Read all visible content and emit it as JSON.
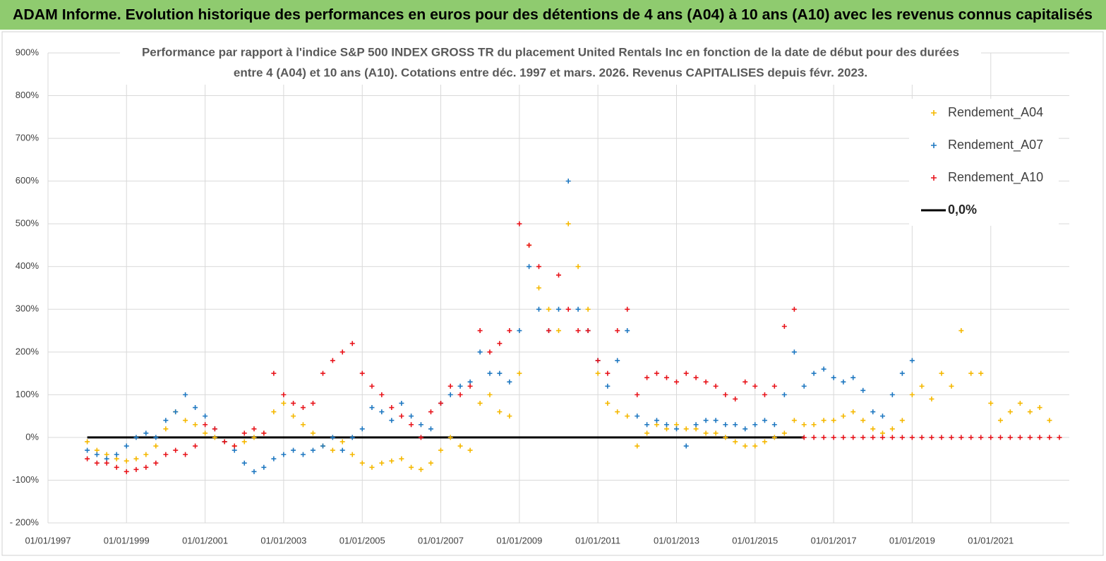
{
  "header": {
    "title": "ADAM Informe. Evolution historique des performances en euros pour des détentions de 4 ans (A04) à 10 ans (A10) avec les revenus connus capitalisés"
  },
  "chart_data": {
    "type": "scatter",
    "title_lines": [
      "Performance par rapport à l'indice S&P 500 INDEX GROSS TR  du placement United Rentals Inc en fonction de la date de début pour des durées",
      "entre 4 (A04) et 10 ans (A10). Cotations entre déc. 1997 et mars. 2026. Revenus CAPITALISES depuis févr. 2023."
    ],
    "xlim": [
      "1997-01-01",
      "2023-01-01"
    ],
    "xticks": [
      {
        "value": "1997-01-01",
        "label": "01/01/1997"
      },
      {
        "value": "1999-01-01",
        "label": "01/01/1999"
      },
      {
        "value": "2001-01-01",
        "label": "01/01/2001"
      },
      {
        "value": "2003-01-01",
        "label": "01/01/2003"
      },
      {
        "value": "2005-01-01",
        "label": "01/01/2005"
      },
      {
        "value": "2007-01-01",
        "label": "01/01/2007"
      },
      {
        "value": "2009-01-01",
        "label": "01/01/2009"
      },
      {
        "value": "2011-01-01",
        "label": "01/01/2011"
      },
      {
        "value": "2013-01-01",
        "label": "01/01/2013"
      },
      {
        "value": "2015-01-01",
        "label": "01/01/2015"
      },
      {
        "value": "2017-01-01",
        "label": "01/01/2017"
      },
      {
        "value": "2019-01-01",
        "label": "01/01/2019"
      },
      {
        "value": "2021-01-01",
        "label": "01/01/2021"
      }
    ],
    "ylim": [
      -200,
      900
    ],
    "yticks": [
      {
        "value": -200,
        "label": "- 200%"
      },
      {
        "value": -100,
        "label": "-100%"
      },
      {
        "value": 0,
        "label": "0%"
      },
      {
        "value": 100,
        "label": "100%"
      },
      {
        "value": 200,
        "label": "200%"
      },
      {
        "value": 300,
        "label": "300%"
      },
      {
        "value": 400,
        "label": "400%"
      },
      {
        "value": 500,
        "label": "500%"
      },
      {
        "value": 600,
        "label": "600%"
      },
      {
        "value": 700,
        "label": "700%"
      },
      {
        "value": 800,
        "label": "800%"
      },
      {
        "value": 900,
        "label": "900%"
      }
    ],
    "grid": true,
    "legend": "upper right",
    "x": [
      "1998-01-01",
      "1998-04-01",
      "1998-07-01",
      "1998-10-01",
      "1999-01-01",
      "1999-04-01",
      "1999-07-01",
      "1999-10-01",
      "2000-01-01",
      "2000-04-01",
      "2000-07-01",
      "2000-10-01",
      "2001-01-01",
      "2001-04-01",
      "2001-07-01",
      "2001-10-01",
      "2002-01-01",
      "2002-04-01",
      "2002-07-01",
      "2002-10-01",
      "2003-01-01",
      "2003-04-01",
      "2003-07-01",
      "2003-10-01",
      "2004-01-01",
      "2004-04-01",
      "2004-07-01",
      "2004-10-01",
      "2005-01-01",
      "2005-04-01",
      "2005-07-01",
      "2005-10-01",
      "2006-01-01",
      "2006-04-01",
      "2006-07-01",
      "2006-10-01",
      "2007-01-01",
      "2007-04-01",
      "2007-07-01",
      "2007-10-01",
      "2008-01-01",
      "2008-04-01",
      "2008-07-01",
      "2008-10-01",
      "2009-01-01",
      "2009-04-01",
      "2009-07-01",
      "2009-10-01",
      "2010-01-01",
      "2010-04-01",
      "2010-07-01",
      "2010-10-01",
      "2011-01-01",
      "2011-04-01",
      "2011-07-01",
      "2011-10-01",
      "2012-01-01",
      "2012-04-01",
      "2012-07-01",
      "2012-10-01",
      "2013-01-01",
      "2013-04-01",
      "2013-07-01",
      "2013-10-01",
      "2014-01-01",
      "2014-04-01",
      "2014-07-01",
      "2014-10-01",
      "2015-01-01",
      "2015-04-01",
      "2015-07-01",
      "2015-10-01",
      "2016-01-01",
      "2016-04-01",
      "2016-07-01",
      "2016-10-01",
      "2017-01-01",
      "2017-04-01",
      "2017-07-01",
      "2017-10-01",
      "2018-01-01",
      "2018-04-01",
      "2018-07-01",
      "2018-10-01",
      "2019-01-01",
      "2019-04-01",
      "2019-07-01",
      "2019-10-01",
      "2020-01-01",
      "2020-04-01",
      "2020-07-01",
      "2020-10-01",
      "2021-01-01",
      "2021-04-01",
      "2021-07-01",
      "2021-10-01",
      "2022-01-01",
      "2022-04-01",
      "2022-07-01",
      "2022-10-01"
    ],
    "series": [
      {
        "name": "Rendement_A04",
        "color": "#f5b800",
        "values": [
          -10,
          -30,
          -40,
          -50,
          -55,
          -50,
          -40,
          -20,
          20,
          60,
          40,
          30,
          10,
          0,
          -10,
          -20,
          -10,
          0,
          10,
          60,
          80,
          50,
          30,
          10,
          -20,
          -30,
          -10,
          -40,
          -60,
          -70,
          -60,
          -55,
          -50,
          -70,
          -75,
          -60,
          -30,
          0,
          -20,
          -30,
          80,
          100,
          60,
          50,
          150,
          450,
          350,
          300,
          250,
          500,
          400,
          300,
          150,
          80,
          60,
          50,
          -20,
          10,
          30,
          20,
          30,
          20,
          20,
          10,
          10,
          0,
          -10,
          -20,
          -20,
          -10,
          0,
          10,
          40,
          30,
          30,
          40,
          40,
          50,
          60,
          40,
          20,
          10,
          20,
          40,
          100,
          120,
          90,
          150,
          120,
          250,
          150,
          150,
          80,
          40,
          60,
          80,
          60,
          70,
          40,
          null
        ]
      },
      {
        "name": "Rendement_A07",
        "color": "#1f78c1",
        "values": [
          -30,
          -40,
          -50,
          -40,
          -20,
          0,
          10,
          0,
          40,
          60,
          100,
          70,
          50,
          20,
          -10,
          -30,
          -60,
          -80,
          -70,
          -50,
          -40,
          -30,
          -40,
          -30,
          -20,
          0,
          -30,
          0,
          20,
          70,
          60,
          40,
          80,
          50,
          30,
          20,
          80,
          100,
          120,
          130,
          200,
          150,
          150,
          130,
          250,
          400,
          300,
          250,
          300,
          600,
          300,
          250,
          180,
          120,
          180,
          250,
          50,
          30,
          40,
          30,
          20,
          -20,
          30,
          40,
          40,
          30,
          30,
          20,
          30,
          40,
          30,
          100,
          200,
          120,
          150,
          160,
          140,
          130,
          140,
          110,
          60,
          50,
          100,
          150,
          180,
          null,
          null,
          null,
          null,
          null,
          null,
          null,
          null,
          null,
          null,
          null,
          null,
          null,
          null,
          null
        ]
      },
      {
        "name": "Rendement_A10",
        "color": "#e8141b",
        "values": [
          -50,
          -60,
          -60,
          -70,
          -80,
          -75,
          -70,
          -60,
          -40,
          -30,
          -40,
          -20,
          30,
          20,
          -10,
          -20,
          10,
          20,
          10,
          150,
          100,
          80,
          70,
          80,
          150,
          180,
          200,
          220,
          150,
          120,
          100,
          70,
          50,
          30,
          0,
          60,
          80,
          120,
          100,
          120,
          250,
          200,
          220,
          250,
          500,
          450,
          400,
          250,
          380,
          300,
          250,
          250,
          180,
          150,
          250,
          300,
          100,
          140,
          150,
          140,
          130,
          150,
          140,
          130,
          120,
          100,
          90,
          130,
          120,
          100,
          120,
          260,
          300,
          0,
          0,
          0,
          0,
          0,
          0,
          0,
          0,
          0,
          0,
          0,
          0,
          0,
          0,
          0,
          0,
          0,
          0,
          0,
          0,
          0,
          0,
          0,
          0,
          0,
          0,
          0
        ]
      }
    ],
    "zero_line": {
      "name": "0,0%",
      "color": "#000000",
      "x": [
        "1998-01-01",
        "2016-04-01"
      ],
      "values": [
        0,
        0
      ]
    }
  }
}
